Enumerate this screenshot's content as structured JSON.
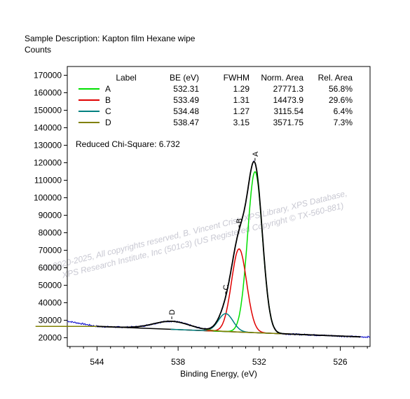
{
  "header": {
    "sample_description": "Sample Description:  Kapton film Hexane wipe",
    "y_unit": "Counts"
  },
  "watermark": {
    "line1": "© 2020-2025,  All copyrights reserved,   B. Vincent Crist,  XPS Library, XPS Database,",
    "line2": "XPS Research Institute, Inc (501c3)   (US Registered Copyright © TX-560-881)"
  },
  "chi_square": "Reduced Chi-Square: 6.732",
  "table": {
    "headers": [
      "Label",
      "BE (eV)",
      "FWHM",
      "Norm. Area",
      "Rel. Area"
    ],
    "rows": [
      {
        "label": "A",
        "be": "532.31",
        "fwhm": "1.29",
        "area": "27771.3",
        "rel": "56.8%",
        "color": "#00e000"
      },
      {
        "label": "B",
        "be": "533.49",
        "fwhm": "1.31",
        "area": "14473.9",
        "rel": "29.6%",
        "color": "#e00000"
      },
      {
        "label": "C",
        "be": "534.48",
        "fwhm": "1.27",
        "area": "3115.54",
        "rel": "6.4%",
        "color": "#008080"
      },
      {
        "label": "D",
        "be": "538.47",
        "fwhm": "3.15",
        "area": "3571.75",
        "rel": "7.3%",
        "color": "#808000"
      }
    ]
  },
  "chart_data": {
    "type": "line",
    "xlabel": "Binding Energy, (eV)",
    "ylabel": "Counts",
    "xlim": [
      546.2,
      523.8
    ],
    "ylim": [
      15000,
      175000
    ],
    "x_reversed": true,
    "x_ticks": [
      544,
      538,
      532,
      526
    ],
    "y_ticks": [
      20000,
      30000,
      40000,
      50000,
      60000,
      70000,
      80000,
      90000,
      100000,
      110000,
      120000,
      130000,
      140000,
      150000,
      160000,
      170000
    ],
    "background": {
      "x": [
        544,
        524.5
      ],
      "y": [
        26500,
        20500
      ]
    },
    "peaks": [
      {
        "label": "A",
        "center": 532.31,
        "fwhm": 1.29,
        "height": 92000,
        "color": "#00e000"
      },
      {
        "label": "B",
        "center": 533.49,
        "fwhm": 1.31,
        "height": 47500,
        "color": "#e00000"
      },
      {
        "label": "C",
        "center": 534.48,
        "fwhm": 1.27,
        "height": 10200,
        "color": "#008080"
      },
      {
        "label": "D",
        "center": 538.47,
        "fwhm": 3.15,
        "height": 4600,
        "color": "#808000"
      }
    ],
    "raw_color": "#0000c8",
    "envelope_color": "#000000"
  }
}
